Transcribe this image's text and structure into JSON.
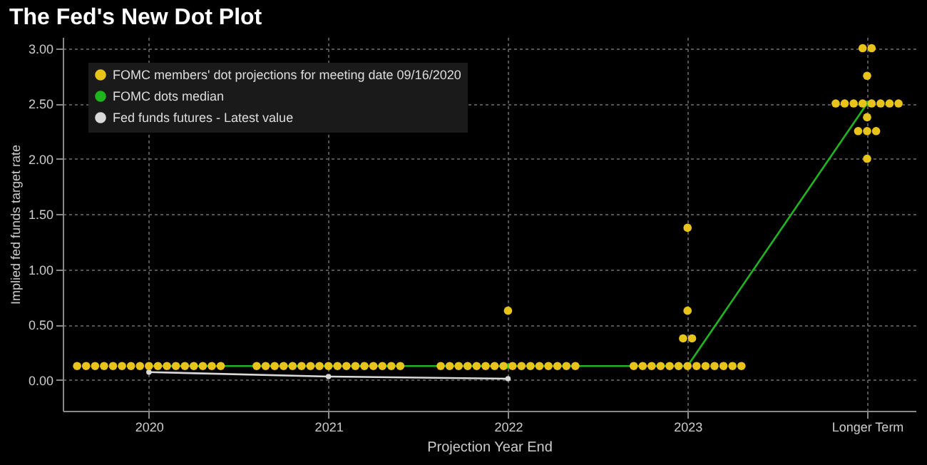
{
  "chart_data": {
    "type": "scatter",
    "title": "The Fed's New Dot Plot",
    "xlabel": "Projection Year End",
    "ylabel": "Implied fed funds target rate",
    "xlim": [
      2019.52,
      2024.27
    ],
    "ylim": [
      -0.28,
      3.1
    ],
    "xticks": [
      2020,
      2021,
      2022,
      2023,
      {
        "value": 2024,
        "label": "Longer Term"
      }
    ],
    "yticks": [
      {
        "value": 0,
        "label": "0.00"
      },
      {
        "value": 0.5,
        "label": "0.50"
      },
      {
        "value": 1,
        "label": "1.00"
      },
      {
        "value": 1.5,
        "label": "1.50"
      },
      {
        "value": 2,
        "label": "2.00"
      },
      {
        "value": 2.5,
        "label": "2.50"
      },
      {
        "value": 3,
        "label": "3.00"
      }
    ],
    "grid": true,
    "legend": "top left",
    "marker": "circle",
    "series": [
      {
        "name": "FOMC members' dot projections for meeting date 09/16/2020",
        "color": "#e8c31a",
        "x": [
          2019.6,
          2019.65,
          2019.7,
          2019.75,
          2019.8,
          2019.85,
          2019.9,
          2019.95,
          2020,
          2020.05,
          2020.1,
          2020.15,
          2020.2,
          2020.25,
          2020.3,
          2020.35,
          2020.4,
          2020.6,
          2020.65,
          2020.7,
          2020.75,
          2020.8,
          2020.85,
          2020.9,
          2020.95,
          2021,
          2021.05,
          2021.1,
          2021.15,
          2021.2,
          2021.25,
          2021.3,
          2021.35,
          2021.4,
          2021.625,
          2021.675,
          2021.725,
          2021.775,
          2021.825,
          2021.875,
          2021.925,
          2021.975,
          2022.025,
          2022.075,
          2022.125,
          2022.175,
          2022.225,
          2022.275,
          2022.325,
          2022.375,
          2022,
          2022.7,
          2022.75,
          2022.8,
          2022.85,
          2022.9,
          2022.95,
          2023,
          2023.05,
          2023.1,
          2023.15,
          2023.2,
          2023.25,
          2023.3,
          2022.975,
          2023.025,
          2023,
          2023,
          2023.825,
          2023.875,
          2023.925,
          2023.975,
          2024.025,
          2024.075,
          2024.125,
          2024.175,
          2023.975,
          2024.025,
          2024,
          2024,
          2023.95,
          2024,
          2024.05,
          2024
        ],
        "values": [
          0.125,
          0.125,
          0.125,
          0.125,
          0.125,
          0.125,
          0.125,
          0.125,
          0.125,
          0.125,
          0.125,
          0.125,
          0.125,
          0.125,
          0.125,
          0.125,
          0.125,
          0.125,
          0.125,
          0.125,
          0.125,
          0.125,
          0.125,
          0.125,
          0.125,
          0.125,
          0.125,
          0.125,
          0.125,
          0.125,
          0.125,
          0.125,
          0.125,
          0.125,
          0.125,
          0.125,
          0.125,
          0.125,
          0.125,
          0.125,
          0.125,
          0.125,
          0.125,
          0.125,
          0.125,
          0.125,
          0.125,
          0.125,
          0.125,
          0.125,
          0.625,
          0.125,
          0.125,
          0.125,
          0.125,
          0.125,
          0.125,
          0.125,
          0.125,
          0.125,
          0.125,
          0.125,
          0.125,
          0.125,
          0.375,
          0.375,
          0.625,
          1.375,
          2.5,
          2.5,
          2.5,
          2.5,
          2.5,
          2.5,
          2.5,
          2.5,
          3,
          3,
          2.75,
          2.375,
          2.25,
          2.25,
          2.25,
          2
        ]
      },
      {
        "name": "FOMC dots median",
        "type": "line",
        "color": "#1fb51f",
        "x": [
          2020,
          2021,
          2022,
          2023,
          2024
        ],
        "values": [
          0.125,
          0.125,
          0.125,
          0.125,
          2.5
        ]
      },
      {
        "name": "Fed funds futures - Latest value",
        "type": "line",
        "color": "#d9d9d9",
        "x": [
          2020,
          2021,
          2022
        ],
        "values": [
          0.07,
          0.03,
          0.01
        ]
      }
    ]
  }
}
